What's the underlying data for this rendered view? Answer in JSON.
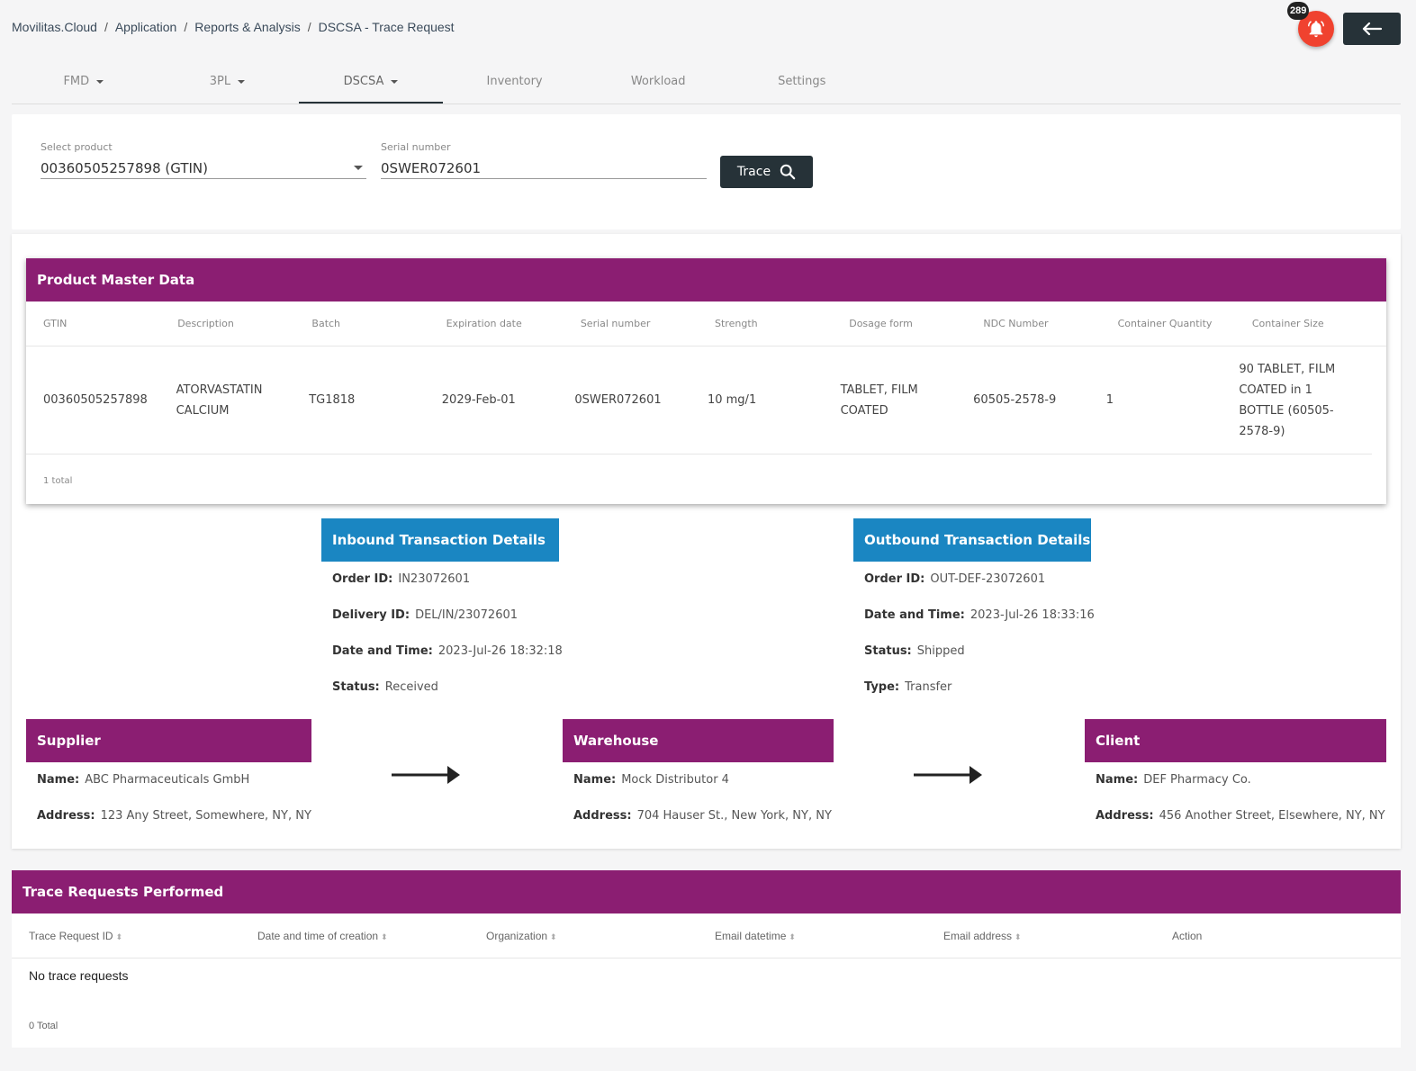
{
  "breadcrumb": [
    "Movilitas.Cloud",
    "Application",
    "Reports & Analysis",
    "DSCSA - Trace Request"
  ],
  "breadcrumb_sep": "/",
  "notifications": {
    "count": "289",
    "icon": "bell-icon",
    "color": "#f0422f"
  },
  "back_button": {
    "icon": "arrow-left-icon"
  },
  "tabs": [
    {
      "label": "FMD",
      "dropdown": true
    },
    {
      "label": "3PL",
      "dropdown": true
    },
    {
      "label": "DSCSA",
      "dropdown": true,
      "active": true
    },
    {
      "label": "Inventory"
    },
    {
      "label": "Workload"
    },
    {
      "label": "Settings"
    }
  ],
  "search": {
    "product_label": "Select product",
    "product_value": "00360505257898 (GTIN)",
    "serial_label": "Serial number",
    "serial_value": "0SWER072601",
    "trace_label": "Trace"
  },
  "product_master": {
    "title": "Product Master Data",
    "columns": [
      "GTIN",
      "Description",
      "Batch",
      "Expiration date",
      "Serial number",
      "Strength",
      "Dosage form",
      "NDC Number",
      "Container Quantity",
      "Container Size"
    ],
    "rows": [
      [
        "00360505257898",
        "ATORVASTATIN CALCIUM",
        "TG1818",
        "2029-Feb-01",
        "0SWER072601",
        "10 mg/1",
        "TABLET, FILM COATED",
        "60505-2578-9",
        "1",
        "90 TABLET, FILM COATED in 1 BOTTLE (60505-2578-9)"
      ]
    ],
    "total": "1 total"
  },
  "inbound": {
    "title": "Inbound Transaction Details",
    "fields": [
      {
        "label": "Order ID:",
        "value": "IN23072601"
      },
      {
        "label": "Delivery ID:",
        "value": "DEL/IN/23072601"
      },
      {
        "label": "Date and Time:",
        "value": "2023-Jul-26 18:32:18"
      },
      {
        "label": "Status:",
        "value": "Received"
      }
    ]
  },
  "outbound": {
    "title": "Outbound Transaction Details",
    "fields": [
      {
        "label": "Order ID:",
        "value": "OUT-DEF-23072601"
      },
      {
        "label": "Date and Time:",
        "value": "2023-Jul-26 18:33:16"
      },
      {
        "label": "Status:",
        "value": "Shipped"
      },
      {
        "label": "Type:",
        "value": "Transfer"
      }
    ]
  },
  "supplier": {
    "title": "Supplier",
    "name_label": "Name:",
    "name": "ABC Pharmaceuticals GmbH",
    "address_label": "Address:",
    "address": "123 Any Street, Somewhere, NY, NY"
  },
  "warehouse": {
    "title": "Warehouse",
    "name_label": "Name:",
    "name": "Mock Distributor 4",
    "address_label": "Address:",
    "address": "704 Hauser St., New York, NY, NY"
  },
  "client": {
    "title": "Client",
    "name_label": "Name:",
    "name": "DEF Pharmacy Co.",
    "address_label": "Address:",
    "address": "456 Another Street, Elsewhere, NY, NY"
  },
  "trace_requests": {
    "title": "Trace Requests Performed",
    "columns": [
      {
        "label": "Trace Request ID",
        "sortable": true
      },
      {
        "label": "Date and time of creation",
        "sortable": true
      },
      {
        "label": "Organization",
        "sortable": true
      },
      {
        "label": "Email datetime",
        "sortable": true
      },
      {
        "label": "Email address",
        "sortable": true
      },
      {
        "label": "Action",
        "sortable": false
      }
    ],
    "empty_text": "No trace requests",
    "total": "0 Total"
  },
  "colors": {
    "purple": "#8b1e72",
    "blue": "#1a86c2",
    "dark": "#263238"
  }
}
